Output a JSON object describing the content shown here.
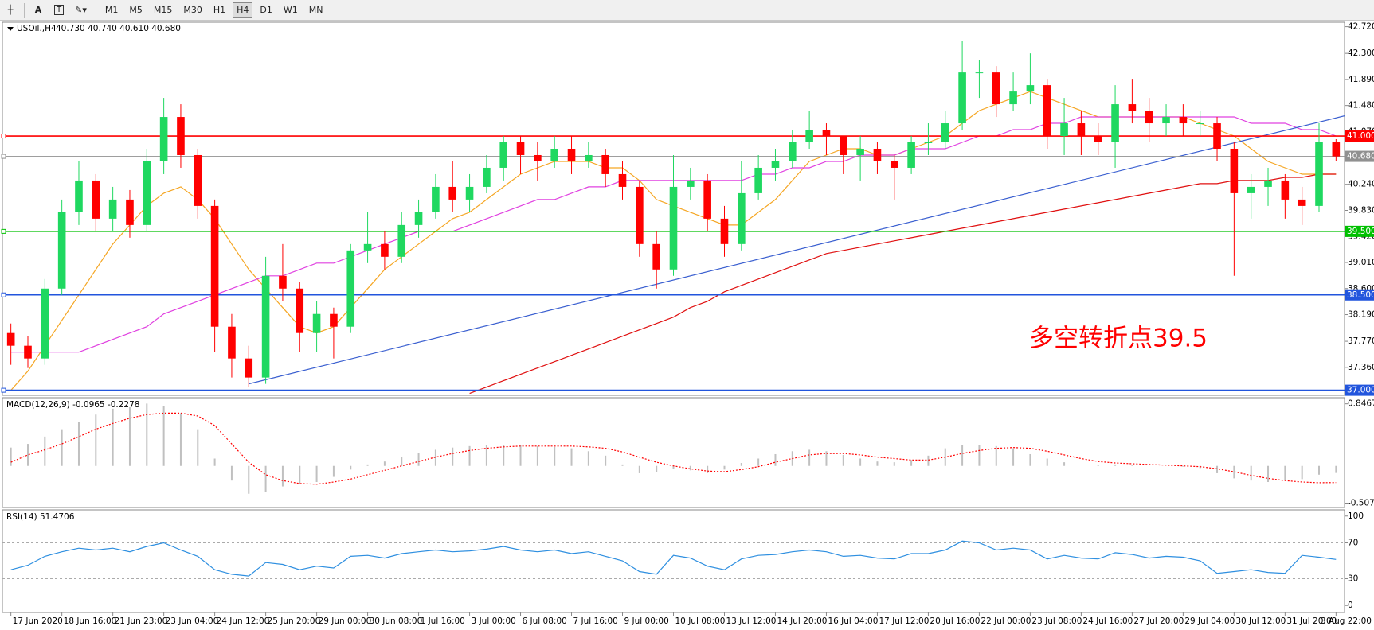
{
  "toolbar": {
    "font_button": "A",
    "text_button": "T",
    "timeframes": [
      "M1",
      "M5",
      "M15",
      "M30",
      "H1",
      "H4",
      "D1",
      "W1",
      "MN"
    ],
    "active": "H4"
  },
  "chart_data": [
    {
      "type": "candlestick",
      "title": "USOil.,H4",
      "subtitle": "40.730 40.740 40.610 40.680",
      "categories": [
        "17 Jun 2020",
        null,
        null,
        "18 Jun 16:00",
        null,
        null,
        "21 Jun 23:00",
        null,
        null,
        "23 Jun 04:00",
        null,
        null,
        "24 Jun 12:00",
        null,
        null,
        "25 Jun 20:00",
        null,
        null,
        "29 Jun 00:00",
        null,
        null,
        "30 Jun 08:00",
        null,
        null,
        "1 Jul 16:00",
        null,
        null,
        "3 Jul 00:00",
        null,
        null,
        "6 Jul 08:00",
        null,
        null,
        "7 Jul 16:00",
        null,
        null,
        "9 Jul 00:00",
        null,
        null,
        "10 Jul 08:00",
        null,
        null,
        "13 Jul 12:00",
        null,
        null,
        "14 Jul 20:00",
        null,
        null,
        "16 Jul 04:00",
        null,
        null,
        "17 Jul 12:00",
        null,
        null,
        "20 Jul 16:00",
        null,
        null,
        "22 Jul 00:00",
        null,
        null,
        "23 Jul 08:00",
        null,
        null,
        "24 Jul 16:00",
        null,
        null,
        "27 Jul 20:00",
        null,
        null,
        "29 Jul 04:00",
        null,
        null,
        "30 Jul 12:00",
        null,
        null,
        "31 Jul 20:00",
        null,
        null,
        "3 Aug 22:00"
      ],
      "open": [
        37.9,
        37.7,
        37.5,
        38.6,
        39.8,
        40.3,
        39.7,
        40.0,
        39.6,
        40.6,
        41.3,
        40.7,
        39.9,
        38.0,
        37.5,
        37.2,
        38.8,
        38.6,
        37.9,
        38.2,
        38.0,
        39.2,
        39.3,
        39.1,
        39.6,
        39.8,
        40.2,
        40.0,
        40.2,
        40.5,
        40.9,
        40.7,
        40.6,
        40.8,
        40.6,
        40.7,
        40.4,
        40.2,
        39.3,
        38.9,
        40.2,
        40.3,
        39.7,
        39.3,
        40.1,
        40.5,
        40.6,
        40.9,
        41.1,
        41.0,
        40.7,
        40.8,
        40.6,
        40.5,
        40.9,
        40.9,
        41.2,
        42.0,
        42.0,
        41.5,
        41.7,
        41.8,
        41.0,
        41.2,
        41.0,
        40.9,
        41.5,
        41.4,
        41.2,
        41.3,
        41.2,
        41.2,
        40.8,
        40.1,
        40.2,
        40.3,
        40.0,
        39.9,
        40.9
      ],
      "high": [
        38.05,
        37.85,
        38.75,
        40.0,
        40.6,
        40.4,
        40.2,
        40.15,
        40.8,
        41.6,
        41.5,
        40.8,
        40.0,
        38.2,
        37.7,
        39.1,
        39.3,
        38.7,
        38.4,
        38.3,
        39.3,
        39.8,
        39.5,
        39.8,
        40.0,
        40.4,
        40.6,
        40.4,
        40.7,
        41.0,
        41.0,
        40.9,
        41.0,
        41.0,
        40.9,
        40.8,
        40.6,
        40.3,
        39.5,
        40.7,
        40.5,
        40.4,
        39.9,
        40.6,
        40.7,
        40.8,
        41.1,
        41.4,
        41.2,
        41.0,
        41.0,
        40.9,
        40.7,
        41.0,
        41.2,
        41.4,
        42.5,
        42.2,
        42.1,
        42.0,
        42.3,
        41.9,
        41.6,
        41.4,
        41.2,
        41.8,
        41.9,
        41.6,
        41.5,
        41.5,
        41.4,
        41.3,
        40.9,
        40.4,
        40.5,
        40.4,
        40.2,
        41.2,
        40.95
      ],
      "low": [
        37.4,
        37.35,
        37.4,
        38.5,
        39.6,
        39.5,
        39.5,
        39.4,
        39.5,
        40.4,
        40.5,
        39.7,
        37.6,
        37.2,
        37.05,
        37.1,
        38.4,
        37.6,
        37.6,
        37.5,
        37.9,
        39.0,
        38.9,
        39.0,
        39.4,
        39.7,
        39.8,
        39.8,
        40.1,
        40.3,
        40.4,
        40.3,
        40.5,
        40.4,
        40.5,
        40.2,
        40.0,
        39.1,
        38.6,
        38.8,
        40.0,
        39.5,
        39.1,
        39.2,
        40.0,
        40.3,
        40.5,
        40.8,
        40.7,
        40.4,
        40.3,
        40.4,
        40.0,
        40.4,
        40.7,
        40.8,
        41.1,
        41.6,
        41.3,
        41.4,
        41.5,
        40.8,
        40.7,
        40.7,
        40.7,
        40.5,
        41.2,
        40.9,
        41.0,
        41.0,
        41.0,
        40.6,
        38.8,
        39.7,
        39.9,
        39.7,
        39.6,
        39.8,
        40.6
      ],
      "close": [
        37.7,
        37.5,
        38.6,
        39.8,
        40.3,
        39.7,
        40.0,
        39.6,
        40.6,
        41.3,
        40.7,
        39.9,
        38.0,
        37.5,
        37.2,
        38.8,
        38.6,
        37.9,
        38.2,
        38.0,
        39.2,
        39.3,
        39.1,
        39.6,
        39.8,
        40.2,
        40.0,
        40.2,
        40.5,
        40.9,
        40.7,
        40.6,
        40.8,
        40.6,
        40.7,
        40.4,
        40.2,
        39.3,
        38.9,
        40.2,
        40.3,
        39.7,
        39.3,
        40.1,
        40.5,
        40.6,
        40.9,
        41.1,
        41.0,
        40.7,
        40.8,
        40.6,
        40.5,
        40.9,
        40.9,
        41.2,
        42.0,
        42.0,
        41.5,
        41.7,
        41.8,
        41.0,
        41.2,
        41.0,
        40.9,
        41.5,
        41.4,
        41.2,
        41.3,
        41.2,
        41.2,
        40.8,
        40.1,
        40.2,
        40.3,
        40.0,
        39.9,
        40.9,
        40.68
      ],
      "up_color": "#1fd860",
      "down_color": "#ff0000",
      "moving_averages": [
        {
          "color": "#f5a623",
          "values": [
            37.0,
            37.3,
            37.7,
            38.1,
            38.5,
            38.9,
            39.3,
            39.6,
            39.9,
            40.1,
            40.2,
            40.0,
            39.7,
            39.3,
            38.9,
            38.6,
            38.3,
            38.0,
            37.9,
            38.0,
            38.3,
            38.6,
            38.9,
            39.1,
            39.3,
            39.5,
            39.7,
            39.8,
            40.0,
            40.2,
            40.4,
            40.5,
            40.6,
            40.6,
            40.6,
            40.5,
            40.5,
            40.3,
            40.0,
            39.9,
            39.8,
            39.7,
            39.6,
            39.6,
            39.8,
            40.0,
            40.3,
            40.6,
            40.7,
            40.8,
            40.8,
            40.7,
            40.7,
            40.8,
            40.9,
            41.0,
            41.2,
            41.4,
            41.5,
            41.6,
            41.7,
            41.6,
            41.5,
            41.4,
            41.3,
            41.3,
            41.3,
            41.3,
            41.3,
            41.3,
            41.2,
            41.1,
            41.0,
            40.8,
            40.6,
            40.5,
            40.4,
            40.4,
            40.4
          ]
        },
        {
          "color": "#e040e0",
          "values": [
            37.6,
            37.6,
            37.6,
            37.6,
            37.6,
            37.7,
            37.8,
            37.9,
            38.0,
            38.2,
            38.3,
            38.4,
            38.5,
            38.6,
            38.7,
            38.8,
            38.8,
            38.9,
            39.0,
            39.0,
            39.1,
            39.2,
            39.3,
            39.4,
            39.5,
            39.5,
            39.5,
            39.6,
            39.7,
            39.8,
            39.9,
            40.0,
            40.0,
            40.1,
            40.2,
            40.2,
            40.3,
            40.3,
            40.3,
            40.3,
            40.3,
            40.3,
            40.3,
            40.3,
            40.4,
            40.4,
            40.5,
            40.5,
            40.6,
            40.6,
            40.7,
            40.7,
            40.7,
            40.8,
            40.8,
            40.8,
            40.9,
            41.0,
            41.0,
            41.1,
            41.1,
            41.2,
            41.2,
            41.3,
            41.3,
            41.3,
            41.3,
            41.3,
            41.3,
            41.3,
            41.3,
            41.3,
            41.3,
            41.2,
            41.2,
            41.2,
            41.1,
            41.1,
            41.0
          ]
        },
        {
          "color": "#e01010",
          "values": [
            null,
            null,
            null,
            null,
            null,
            null,
            null,
            null,
            null,
            null,
            null,
            null,
            null,
            null,
            null,
            null,
            null,
            null,
            null,
            null,
            null,
            null,
            null,
            null,
            null,
            null,
            null,
            36.95,
            37.05,
            37.15,
            37.25,
            37.35,
            37.45,
            37.55,
            37.65,
            37.75,
            37.85,
            37.95,
            38.05,
            38.15,
            38.3,
            38.4,
            38.55,
            38.65,
            38.75,
            38.85,
            38.95,
            39.05,
            39.15,
            39.2,
            39.25,
            39.3,
            39.35,
            39.4,
            39.45,
            39.5,
            39.55,
            39.6,
            39.65,
            39.7,
            39.75,
            39.8,
            39.85,
            39.9,
            39.95,
            40.0,
            40.05,
            40.1,
            40.15,
            40.2,
            40.25,
            40.25,
            40.3,
            40.3,
            40.3,
            40.35,
            40.35,
            40.4,
            40.4
          ]
        }
      ],
      "trend_line": {
        "color": "#3a5fd0",
        "x": [
          14,
          79
        ],
        "values": [
          37.1,
          41.35
        ]
      },
      "levels": [
        {
          "value": 41.0,
          "label": "41.000",
          "color": "#ff0000"
        },
        {
          "value": 40.68,
          "label": "40.680",
          "color": "#909090"
        },
        {
          "value": 39.5,
          "label": "39.500",
          "color": "#00c000"
        },
        {
          "value": 38.5,
          "label": "38.500",
          "color": "#2255dd"
        },
        {
          "value": 37.0,
          "label": "37.000",
          "color": "#2255dd"
        }
      ],
      "annotation": {
        "text": "多空转折点39.5",
        "color": "#ff0000"
      },
      "ylim": [
        36.92,
        42.79
      ],
      "yticks": [
        {
          "value": 42.72,
          "label": "42.720"
        },
        {
          "value": 42.3,
          "label": "42.300"
        },
        {
          "value": 41.89,
          "label": "41.890"
        },
        {
          "value": 41.48,
          "label": "41.480"
        },
        {
          "value": 41.07,
          "label": "41.070"
        },
        {
          "value": 40.65,
          "label": "40.650"
        },
        {
          "value": 40.24,
          "label": "40.240"
        },
        {
          "value": 39.83,
          "label": "39.830"
        },
        {
          "value": 39.42,
          "label": "39.420"
        },
        {
          "value": 39.01,
          "label": "39.010"
        },
        {
          "value": 38.6,
          "label": "38.600"
        },
        {
          "value": 38.19,
          "label": "38.190"
        },
        {
          "value": 37.77,
          "label": "37.770"
        },
        {
          "value": 37.36,
          "label": "37.360"
        }
      ],
      "grid": false
    },
    {
      "type": "macd",
      "title": "MACD(12,26,9) -0.0965 -0.2278",
      "histogram": [
        0.25,
        0.3,
        0.4,
        0.5,
        0.6,
        0.7,
        0.78,
        0.8,
        0.85,
        0.82,
        0.72,
        0.5,
        0.1,
        -0.2,
        -0.38,
        -0.35,
        -0.28,
        -0.25,
        -0.22,
        -0.15,
        -0.05,
        0.02,
        0.06,
        0.12,
        0.18,
        0.22,
        0.25,
        0.27,
        0.28,
        0.28,
        0.28,
        0.27,
        0.26,
        0.24,
        0.2,
        0.14,
        0.02,
        -0.1,
        -0.08,
        -0.04,
        -0.06,
        -0.1,
        -0.05,
        0.04,
        0.1,
        0.16,
        0.2,
        0.22,
        0.2,
        0.15,
        0.1,
        0.06,
        0.05,
        0.08,
        0.14,
        0.24,
        0.28,
        0.28,
        0.27,
        0.24,
        0.16,
        0.1,
        0.05,
        0.0,
        0.01,
        0.02,
        0.01,
        0.0,
        0.0,
        -0.01,
        -0.03,
        -0.1,
        -0.17,
        -0.2,
        -0.22,
        -0.2,
        -0.18,
        -0.12,
        -0.0965
      ],
      "signal": [
        0.05,
        0.15,
        0.22,
        0.3,
        0.4,
        0.5,
        0.58,
        0.65,
        0.7,
        0.72,
        0.72,
        0.68,
        0.55,
        0.3,
        0.05,
        -0.12,
        -0.2,
        -0.24,
        -0.25,
        -0.22,
        -0.18,
        -0.12,
        -0.06,
        0.0,
        0.06,
        0.12,
        0.17,
        0.21,
        0.24,
        0.26,
        0.27,
        0.27,
        0.27,
        0.27,
        0.26,
        0.24,
        0.19,
        0.12,
        0.05,
        0.0,
        -0.04,
        -0.07,
        -0.08,
        -0.05,
        -0.01,
        0.05,
        0.1,
        0.15,
        0.17,
        0.17,
        0.15,
        0.12,
        0.1,
        0.08,
        0.08,
        0.12,
        0.17,
        0.21,
        0.24,
        0.25,
        0.24,
        0.2,
        0.15,
        0.1,
        0.06,
        0.04,
        0.03,
        0.02,
        0.01,
        0.0,
        -0.01,
        -0.04,
        -0.08,
        -0.13,
        -0.17,
        -0.2,
        -0.22,
        -0.23,
        -0.2278
      ],
      "histogram_color": "#c0c0c0",
      "signal_color": "#ff0000",
      "ylim": [
        -0.567,
        0.93
      ],
      "yticks": [
        0.8467,
        -0.5072
      ]
    },
    {
      "type": "rsi",
      "title": "RSI(14) 51.4706",
      "values": [
        40,
        45,
        55,
        60,
        64,
        62,
        64,
        60,
        66,
        70,
        62,
        55,
        40,
        35,
        33,
        48,
        46,
        40,
        44,
        42,
        55,
        56,
        53,
        58,
        60,
        62,
        60,
        61,
        63,
        66,
        62,
        60,
        62,
        58,
        60,
        55,
        50,
        38,
        35,
        56,
        53,
        44,
        40,
        52,
        56,
        57,
        60,
        62,
        60,
        55,
        56,
        53,
        52,
        58,
        58,
        62,
        72,
        70,
        62,
        64,
        62,
        52,
        56,
        53,
        52,
        59,
        57,
        53,
        55,
        54,
        50,
        36,
        38,
        40,
        37,
        36,
        56,
        54,
        51.4706
      ],
      "color": "#2e8fe0",
      "ylim": [
        -7.8,
        106.9
      ],
      "yticks": [
        0,
        30,
        70,
        100
      ],
      "levels": [
        30,
        70
      ]
    }
  ]
}
